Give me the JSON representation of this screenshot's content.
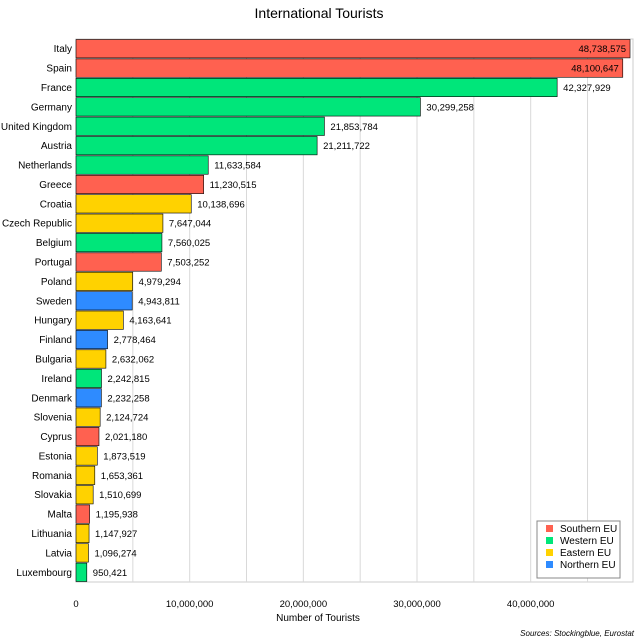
{
  "chart_data": {
    "type": "bar",
    "orientation": "horizontal",
    "title": "International Tourists",
    "xlabel": "Number of Tourists",
    "ylabel": "",
    "source": "Sources: Stockingblue, Eurostat",
    "xlim": [
      0,
      49000000
    ],
    "x_ticks": [
      0,
      10000000,
      20000000,
      30000000,
      40000000
    ],
    "x_tick_labels": [
      "0",
      "10,000,000",
      "20,000,000",
      "30,000,000",
      "40,000,000"
    ],
    "grid": true,
    "legend_position": "bottom-right",
    "legend": [
      {
        "name": "Southern EU",
        "color": "#ff6150"
      },
      {
        "name": "Western EU",
        "color": "#00e67a"
      },
      {
        "name": "Eastern EU",
        "color": "#ffd200"
      },
      {
        "name": "Northern EU",
        "color": "#2e8bff"
      }
    ],
    "categories": [
      "Italy",
      "Spain",
      "France",
      "Germany",
      "United Kingdom",
      "Austria",
      "Netherlands",
      "Greece",
      "Croatia",
      "Czech Republic",
      "Belgium",
      "Portugal",
      "Poland",
      "Sweden",
      "Hungary",
      "Finland",
      "Bulgaria",
      "Ireland",
      "Denmark",
      "Slovenia",
      "Cyprus",
      "Estonia",
      "Romania",
      "Slovakia",
      "Malta",
      "Lithuania",
      "Latvia",
      "Luxembourg"
    ],
    "values": [
      48738575,
      48100647,
      42327929,
      30299258,
      21853784,
      21211722,
      11633584,
      11230515,
      10138696,
      7647044,
      7560025,
      7503252,
      4979294,
      4943811,
      4163641,
      2778464,
      2632062,
      2242815,
      2232258,
      2124724,
      2021180,
      1873519,
      1653361,
      1510699,
      1195938,
      1147927,
      1096274,
      950421
    ],
    "value_labels": [
      "48,738,575",
      "48,100,647",
      "42,327,929",
      "30,299,258",
      "21,853,784",
      "21,211,722",
      "11,633,584",
      "11,230,515",
      "10,138,696",
      "7,647,044",
      "7,560,025",
      "7,503,252",
      "4,979,294",
      "4,943,811",
      "4,163,641",
      "2,778,464",
      "2,632,062",
      "2,242,815",
      "2,232,258",
      "2,124,724",
      "2,021,180",
      "1,873,519",
      "1,653,361",
      "1,510,699",
      "1,195,938",
      "1,147,927",
      "1,096,274",
      "950,421"
    ],
    "regions": [
      "Southern EU",
      "Southern EU",
      "Western EU",
      "Western EU",
      "Western EU",
      "Western EU",
      "Western EU",
      "Southern EU",
      "Eastern EU",
      "Eastern EU",
      "Western EU",
      "Southern EU",
      "Eastern EU",
      "Northern EU",
      "Eastern EU",
      "Northern EU",
      "Eastern EU",
      "Western EU",
      "Northern EU",
      "Eastern EU",
      "Southern EU",
      "Eastern EU",
      "Eastern EU",
      "Eastern EU",
      "Southern EU",
      "Eastern EU",
      "Eastern EU",
      "Western EU"
    ]
  }
}
